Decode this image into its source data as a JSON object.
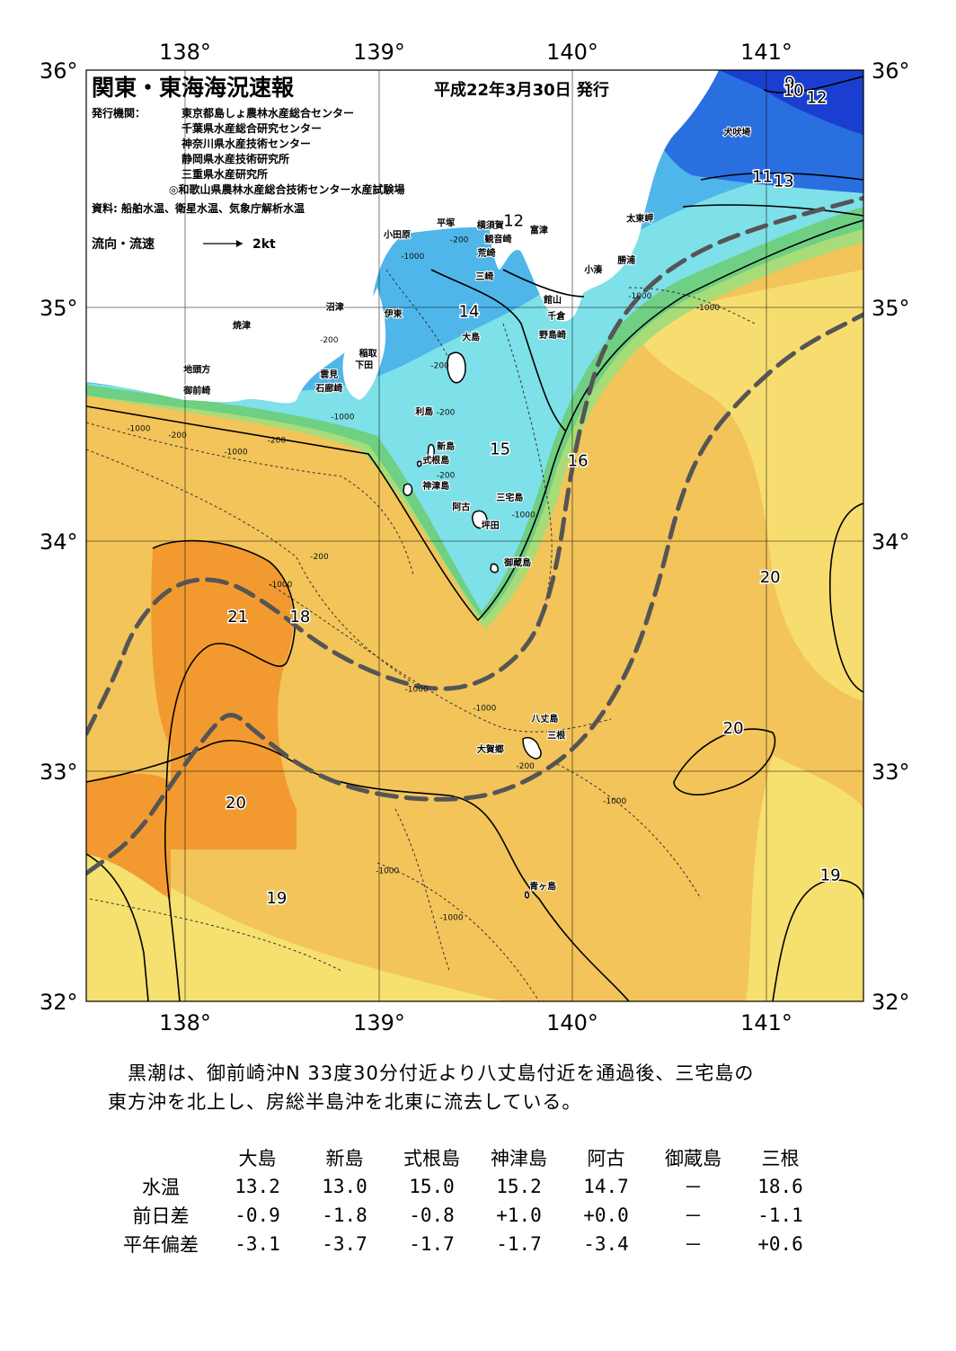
{
  "header": {
    "title": "関東・東海海況速報",
    "date": "平成22年3月30日 発行",
    "issuer_label": "発行機関：",
    "issuers": [
      "東京都島しょ農林水産総合センター",
      "千葉県水産総合研究センター",
      "神奈川県水産技術センター",
      "静岡県水産技術研究所",
      "三重県水産研究所",
      "◎和歌山県農林水産総合技術センター水産試験場"
    ],
    "source": "資料: 船舶水温、衛星水温、気象庁解析水温",
    "legend_label": "流向・流速",
    "legend_speed": "2kt"
  },
  "axes": {
    "lon_ticks": [
      "138°",
      "139°",
      "140°",
      "141°"
    ],
    "lat_ticks": [
      "36°",
      "35°",
      "34°",
      "33°",
      "32°"
    ]
  },
  "places": [
    {
      "name": "小田原",
      "lon": 139.1,
      "lat": 35.28
    },
    {
      "name": "平塚",
      "lon": 139.35,
      "lat": 35.33
    },
    {
      "name": "横須賀",
      "lon": 139.58,
      "lat": 35.32
    },
    {
      "name": "観音崎",
      "lon": 139.62,
      "lat": 35.26
    },
    {
      "name": "荒崎",
      "lon": 139.56,
      "lat": 35.2
    },
    {
      "name": "三崎",
      "lon": 139.55,
      "lat": 35.1
    },
    {
      "name": "富津",
      "lon": 139.83,
      "lat": 35.3
    },
    {
      "name": "犬吠埼",
      "lon": 140.85,
      "lat": 35.72
    },
    {
      "name": "太東岬",
      "lon": 140.35,
      "lat": 35.35
    },
    {
      "name": "勝浦",
      "lon": 140.28,
      "lat": 35.17
    },
    {
      "name": "小湊",
      "lon": 140.11,
      "lat": 35.13
    },
    {
      "name": "館山",
      "lon": 139.9,
      "lat": 35.0
    },
    {
      "name": "千倉",
      "lon": 139.92,
      "lat": 34.93
    },
    {
      "name": "野島崎",
      "lon": 139.9,
      "lat": 34.85
    },
    {
      "name": "沼津",
      "lon": 138.78,
      "lat": 34.97
    },
    {
      "name": "伊東",
      "lon": 139.08,
      "lat": 34.94
    },
    {
      "name": "焼津",
      "lon": 138.3,
      "lat": 34.89
    },
    {
      "name": "稲取",
      "lon": 138.95,
      "lat": 34.77
    },
    {
      "name": "下田",
      "lon": 138.93,
      "lat": 34.72
    },
    {
      "name": "雲見",
      "lon": 138.75,
      "lat": 34.68
    },
    {
      "name": "石廊崎",
      "lon": 138.75,
      "lat": 34.62
    },
    {
      "name": "地頭方",
      "lon": 138.07,
      "lat": 34.7
    },
    {
      "name": "御前崎",
      "lon": 138.07,
      "lat": 34.61
    },
    {
      "name": "大島",
      "lon": 139.48,
      "lat": 34.84
    },
    {
      "name": "利島",
      "lon": 139.24,
      "lat": 34.52
    },
    {
      "name": "新島",
      "lon": 139.35,
      "lat": 34.37
    },
    {
      "name": "式根島",
      "lon": 139.3,
      "lat": 34.31
    },
    {
      "name": "神津島",
      "lon": 139.3,
      "lat": 34.2
    },
    {
      "name": "三宅島",
      "lon": 139.68,
      "lat": 34.15
    },
    {
      "name": "阿古",
      "lon": 139.43,
      "lat": 34.11
    },
    {
      "name": "坪田",
      "lon": 139.58,
      "lat": 34.03
    },
    {
      "name": "御蔵島",
      "lon": 139.72,
      "lat": 33.87
    },
    {
      "name": "八丈島",
      "lon": 139.86,
      "lat": 33.2
    },
    {
      "name": "三根",
      "lon": 139.92,
      "lat": 33.13
    },
    {
      "name": "大賀郷",
      "lon": 139.58,
      "lat": 33.07
    },
    {
      "name": "青ヶ島",
      "lon": 139.85,
      "lat": 32.48
    }
  ],
  "isotherm_labels": [
    {
      "text": "9",
      "lon": 141.12,
      "lat": 35.92
    },
    {
      "text": "10",
      "lon": 141.14,
      "lat": 35.89
    },
    {
      "text": "12",
      "lon": 141.26,
      "lat": 35.86
    },
    {
      "text": "11",
      "lon": 140.98,
      "lat": 35.52
    },
    {
      "text": "13",
      "lon": 141.09,
      "lat": 35.5
    },
    {
      "text": "12",
      "lon": 139.7,
      "lat": 35.33
    },
    {
      "text": "14",
      "lon": 139.47,
      "lat": 34.94
    },
    {
      "text": "15",
      "lon": 139.63,
      "lat": 34.35
    },
    {
      "text": "16",
      "lon": 140.03,
      "lat": 34.3
    },
    {
      "text": "21",
      "lon": 138.28,
      "lat": 33.63
    },
    {
      "text": "18",
      "lon": 138.6,
      "lat": 33.63
    },
    {
      "text": "20",
      "lon": 141.02,
      "lat": 33.8
    },
    {
      "text": "20",
      "lon": 140.83,
      "lat": 33.15
    },
    {
      "text": "20",
      "lon": 138.27,
      "lat": 32.83
    },
    {
      "text": "19",
      "lon": 138.48,
      "lat": 32.42
    },
    {
      "text": "19",
      "lon": 141.33,
      "lat": 32.52
    }
  ],
  "depth_labels": [
    {
      "text": "-200",
      "lon": 139.42,
      "lat": 35.26
    },
    {
      "text": "-1000",
      "lon": 139.18,
      "lat": 35.19
    },
    {
      "text": "-200",
      "lon": 138.75,
      "lat": 34.83
    },
    {
      "text": "-200",
      "lon": 139.32,
      "lat": 34.72
    },
    {
      "text": "-200",
      "lon": 139.35,
      "lat": 34.52
    },
    {
      "text": "-1000",
      "lon": 138.82,
      "lat": 34.5
    },
    {
      "text": "-200",
      "lon": 138.48,
      "lat": 34.4
    },
    {
      "text": "-1000",
      "lon": 138.27,
      "lat": 34.35
    },
    {
      "text": "-1000",
      "lon": 137.77,
      "lat": 34.45
    },
    {
      "text": "-200",
      "lon": 137.97,
      "lat": 34.42
    },
    {
      "text": "-200",
      "lon": 139.35,
      "lat": 34.25
    },
    {
      "text": "-1000",
      "lon": 139.75,
      "lat": 34.08
    },
    {
      "text": "-200",
      "lon": 138.7,
      "lat": 33.9
    },
    {
      "text": "-1000",
      "lon": 138.5,
      "lat": 33.78
    },
    {
      "text": "-1000",
      "lon": 140.35,
      "lat": 35.02
    },
    {
      "text": "-1000",
      "lon": 140.7,
      "lat": 34.97
    },
    {
      "text": "-1000",
      "lon": 139.2,
      "lat": 33.33
    },
    {
      "text": "-1000",
      "lon": 139.55,
      "lat": 33.25
    },
    {
      "text": "-200",
      "lon": 139.76,
      "lat": 33.0
    },
    {
      "text": "-1000",
      "lon": 140.22,
      "lat": 32.85
    },
    {
      "text": "-1000",
      "lon": 139.05,
      "lat": 32.55
    },
    {
      "text": "-1000",
      "lon": 139.38,
      "lat": 32.35
    }
  ],
  "chart_data": {
    "type": "map",
    "extent": {
      "lon": [
        137.5,
        141.5
      ],
      "lat": [
        32,
        36
      ]
    },
    "kuroshio_axis_primary": [
      [
        137.5,
        33.15
      ],
      [
        137.65,
        33.4
      ],
      [
        137.75,
        33.62
      ],
      [
        137.95,
        33.8
      ],
      [
        138.2,
        33.82
      ],
      [
        138.45,
        33.7
      ],
      [
        138.7,
        33.53
      ],
      [
        139.0,
        33.4
      ],
      [
        139.3,
        33.33
      ],
      [
        139.55,
        33.37
      ],
      [
        139.75,
        33.5
      ],
      [
        139.85,
        33.65
      ],
      [
        139.93,
        33.9
      ],
      [
        139.98,
        34.2
      ],
      [
        140.05,
        34.5
      ],
      [
        140.15,
        34.8
      ],
      [
        140.35,
        35.05
      ],
      [
        140.65,
        35.23
      ],
      [
        141.05,
        35.35
      ],
      [
        141.5,
        35.45
      ]
    ],
    "kuroshio_axis_secondary": [
      [
        137.5,
        32.55
      ],
      [
        137.75,
        32.7
      ],
      [
        137.95,
        32.95
      ],
      [
        138.15,
        33.18
      ],
      [
        138.25,
        33.25
      ],
      [
        138.38,
        33.15
      ],
      [
        138.65,
        32.98
      ],
      [
        139.0,
        32.88
      ],
      [
        139.45,
        32.86
      ],
      [
        139.75,
        32.93
      ],
      [
        140.05,
        33.1
      ],
      [
        140.3,
        33.42
      ],
      [
        140.45,
        33.8
      ],
      [
        140.55,
        34.15
      ],
      [
        140.68,
        34.4
      ],
      [
        140.88,
        34.6
      ],
      [
        141.15,
        34.8
      ],
      [
        141.5,
        34.95
      ]
    ]
  },
  "summary": {
    "line1": "　黒潮は、御前崎沖N 33度30分付近より八丈島付近を通過後、三宅島の",
    "line2": "東方沖を北上し、房総半島沖を北東に流去している。"
  },
  "table": {
    "columns": [
      "大島",
      "新島",
      "式根島",
      "神津島",
      "阿古",
      "御蔵島",
      "三根"
    ],
    "rows": [
      {
        "label": "水温",
        "values": [
          "13.2",
          "13.0",
          "15.0",
          "15.2",
          "14.7",
          "－",
          "18.6"
        ]
      },
      {
        "label": "前日差",
        "values": [
          "-0.9",
          "-1.8",
          "-0.8",
          "+1.0",
          "+0.0",
          "－",
          "-1.1"
        ]
      },
      {
        "label": "平年偏差",
        "values": [
          "-3.1",
          "-3.7",
          "-1.7",
          "-1.7",
          "-3.4",
          "－",
          "+0.6"
        ]
      }
    ]
  }
}
